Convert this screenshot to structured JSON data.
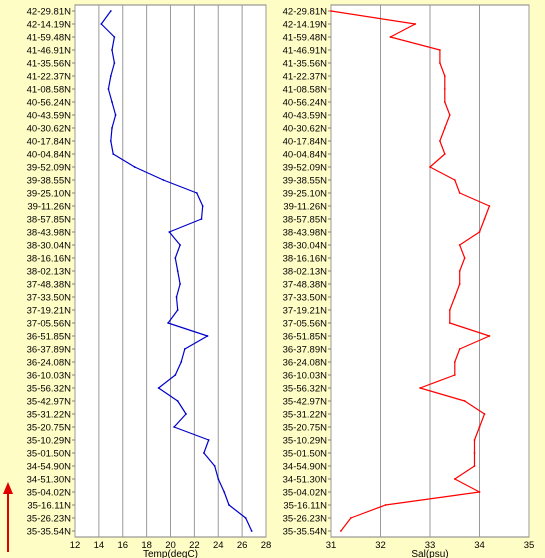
{
  "chart_data": [
    {
      "type": "line",
      "orientation": "vertical-profile",
      "xlabel": "Temp(degC)",
      "xlim": [
        12,
        28
      ],
      "xticks": [
        "12",
        "14",
        "16",
        "18",
        "20",
        "22",
        "24",
        "26",
        "28"
      ],
      "grid": true,
      "y_tick_labels": [
        "42-29.81N",
        "42-14.19N",
        "41-59.48N",
        "41-46.91N",
        "41-35.56N",
        "41-22.37N",
        "41-08.58N",
        "40-56.24N",
        "40-43.59N",
        "40-30.62N",
        "40-17.84N",
        "40-04.84N",
        "39-52.09N",
        "39-38.55N",
        "39-25.10N",
        "39-11.26N",
        "38-57.85N",
        "38-43.98N",
        "38-30.04N",
        "38-16.16N",
        "38-02.13N",
        "37-48.38N",
        "37-33.50N",
        "37-19.21N",
        "37-05.56N",
        "36-51.85N",
        "36-37.89N",
        "36-24.08N",
        "36-10.03N",
        "35-56.32N",
        "35-42.97N",
        "35-31.22N",
        "35-20.75N",
        "35-10.29N",
        "35-01.50N",
        "34-54.90N",
        "34-51.30N",
        "35-04.02N",
        "35-16.11N",
        "35-26.23N",
        "35-35.54N"
      ],
      "series": [
        {
          "color": "#0000cc",
          "values": [
            15.0,
            14.2,
            15.3,
            15.1,
            15.3,
            15.0,
            14.8,
            15.1,
            15.4,
            15.1,
            15.0,
            15.2,
            17.0,
            19.4,
            22.2,
            22.7,
            22.6,
            19.9,
            20.8,
            20.4,
            20.6,
            20.8,
            20.5,
            20.6,
            19.8,
            23.1,
            21.2,
            20.9,
            20.4,
            19.0,
            20.6,
            21.3,
            20.3,
            23.2,
            22.8,
            23.7,
            24.0,
            24.5,
            24.9,
            26.3,
            26.8
          ]
        }
      ]
    },
    {
      "type": "line",
      "orientation": "vertical-profile",
      "xlabel": "Sal(psu)",
      "xlim": [
        31,
        35
      ],
      "xticks": [
        "31",
        "32",
        "33",
        "34",
        "35"
      ],
      "grid": true,
      "y_tick_labels": [
        "42-29.81N",
        "42-14.19N",
        "41-59.48N",
        "41-46.91N",
        "41-35.56N",
        "41-22.37N",
        "41-08.58N",
        "40-56.24N",
        "40-43.59N",
        "40-30.62N",
        "40-17.84N",
        "40-04.84N",
        "39-52.09N",
        "39-38.55N",
        "39-25.10N",
        "39-11.26N",
        "38-57.85N",
        "38-43.98N",
        "38-30.04N",
        "38-16.16N",
        "38-02.13N",
        "37-48.38N",
        "37-33.50N",
        "37-19.21N",
        "37-05.56N",
        "36-51.85N",
        "36-37.89N",
        "36-24.08N",
        "36-10.03N",
        "35-56.32N",
        "35-42.97N",
        "35-31.22N",
        "35-20.75N",
        "35-10.29N",
        "35-01.50N",
        "34-54.90N",
        "34-51.30N",
        "35-04.02N",
        "35-16.11N",
        "35-26.23N",
        "35-35.54N"
      ],
      "series": [
        {
          "color": "#ff0000",
          "values": [
            31.0,
            32.7,
            32.2,
            33.2,
            33.2,
            33.3,
            33.3,
            33.3,
            33.4,
            33.3,
            33.2,
            33.3,
            33.0,
            33.5,
            33.6,
            34.2,
            34.1,
            34.0,
            33.6,
            33.7,
            33.6,
            33.6,
            33.5,
            33.4,
            33.4,
            34.2,
            33.6,
            33.5,
            33.5,
            32.8,
            33.7,
            34.1,
            34.0,
            33.9,
            33.9,
            33.9,
            33.5,
            34.0,
            32.1,
            31.4,
            31.2
          ]
        }
      ]
    }
  ],
  "indicator": {
    "color": "#e00000"
  }
}
